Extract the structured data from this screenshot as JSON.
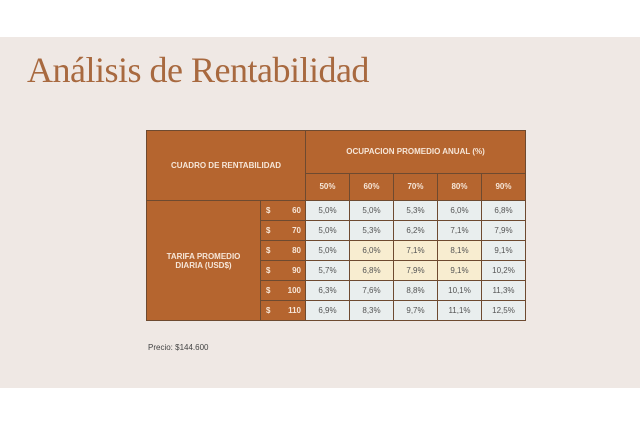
{
  "title": "Análisis de Rentabilidad",
  "table": {
    "corner": "CUADRO DE RENTABILIDAD",
    "col_group": "OCUPACION PROMEDIO ANUAL (%)",
    "columns": [
      "50%",
      "60%",
      "70%",
      "80%",
      "90%"
    ],
    "row_group": "TARIFA PROMEDIO DIARIA (USD$)",
    "currency": "$",
    "rows": [
      {
        "rate": "60",
        "values": [
          "5,0%",
          "5,0%",
          "5,3%",
          "6,0%",
          "6,8%"
        ]
      },
      {
        "rate": "70",
        "values": [
          "5,0%",
          "5,3%",
          "6,2%",
          "7,1%",
          "7,9%"
        ]
      },
      {
        "rate": "80",
        "values": [
          "5,0%",
          "6,0%",
          "7,1%",
          "8,1%",
          "9,1%"
        ]
      },
      {
        "rate": "90",
        "values": [
          "5,7%",
          "6,8%",
          "7,9%",
          "9,1%",
          "10,2%"
        ]
      },
      {
        "rate": "100",
        "values": [
          "6,3%",
          "7,6%",
          "8,8%",
          "10,1%",
          "11,3%"
        ]
      },
      {
        "rate": "110",
        "values": [
          "6,9%",
          "8,3%",
          "9,7%",
          "11,1%",
          "12,5%"
        ]
      }
    ],
    "highlight_color": "#f8edd0",
    "header_color": "#b5652f"
  },
  "price": "Precio: $144.600"
}
